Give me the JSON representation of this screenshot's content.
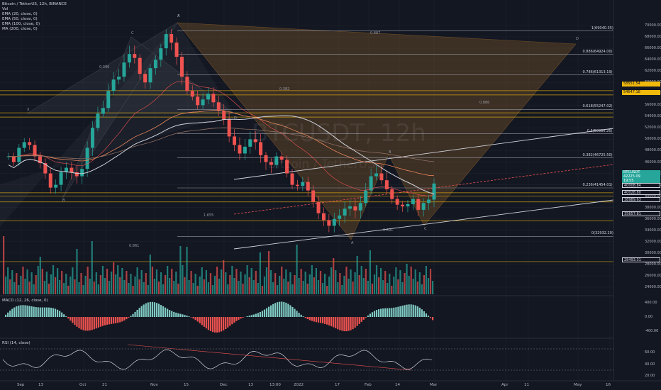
{
  "header": {
    "symbol_line": "Bitcoin / TetherUS, 12h, BINANCE",
    "vol_label": "Vol",
    "indicators": [
      "EMA (20, close, 0)",
      "EMA (50, close, 0)",
      "EMA (100, close, 0)",
      "MA (200, close, 0)"
    ]
  },
  "watermark": {
    "symbol": "BTCUSDT, 12h",
    "name": "Bitcoin / TetherUS"
  },
  "panes": {
    "macd_label": "MACD (12, 26, close, 0)",
    "rsi_label": "RSI (14, close)"
  },
  "x_labels": [
    "Sep",
    "13",
    "Oct",
    "21",
    "Nov",
    "15",
    "Dec",
    "13",
    "13:00",
    "2022",
    "17",
    "Feb",
    "14",
    "Mar",
    "Apr",
    "11",
    "May",
    "16"
  ],
  "price_axis": [
    "70000.00",
    "68000.00",
    "66000.00",
    "64000.00",
    "62000.00",
    "60000.00",
    "58000.00",
    "56000.00",
    "54000.00",
    "52000.00",
    "50000.00",
    "48000.00",
    "46000.00",
    "44000.00",
    "42000.00",
    "40000.00",
    "38000.00",
    "36000.00",
    "34000.00",
    "32000.00",
    "30000.00",
    "28000.00",
    "26000.00",
    "24000.00"
  ],
  "macd_axis": [
    "400.00",
    "0.00",
    "-400.00"
  ],
  "rsi_axis": [
    "60.00",
    "40.00",
    "20.00"
  ],
  "fib_labels": [
    "1(69040.35)",
    "0.886(64924.00)",
    "0.786(61313.19)",
    "0.618(55247.02)",
    "0.5(50986.26)",
    "0.382(46725.50)",
    "0.236(41454.01)",
    "0(32932.20)"
  ],
  "price_boxes": [
    {
      "text": "58551.54",
      "color": "#f0b90b",
      "fg": "#131722"
    },
    {
      "text": "54647.18",
      "color": "#f0b90b",
      "fg": "#131722"
    },
    {
      "text": "BTCUSDT",
      "color": "#26a69a",
      "fg": "#ffffff"
    },
    {
      "text": "42225.09",
      "color": "#26a69a",
      "fg": "#ffffff"
    },
    {
      "text": "19:55",
      "color": "#26a69a",
      "fg": "#ffffff"
    },
    {
      "text": "40008.84",
      "color": "#131722",
      "fg": "#d1d4dc"
    },
    {
      "text": "40028.80",
      "color": "#131722",
      "fg": "#d1d4dc"
    },
    {
      "text": "38989.63",
      "color": "#131722",
      "fg": "#d1d4dc"
    },
    {
      "text": "35657.81",
      "color": "#131722",
      "fg": "#d1d4dc"
    },
    {
      "text": "28493.31",
      "color": "#131722",
      "fg": "#d1d4dc"
    }
  ],
  "pattern_points": [
    "X",
    "A",
    "B",
    "C",
    "D",
    "X",
    "A",
    "B",
    "C",
    "D"
  ],
  "ratio_labels": [
    "0.887",
    "0.382",
    "0.886",
    "1.655",
    "0.891",
    "0.861",
    "0.396"
  ],
  "chart_data": {
    "type": "candlestick",
    "y_range": [
      23000,
      71000
    ],
    "price_series_close": [
      47000,
      46000,
      48500,
      49500,
      49000,
      47000,
      45800,
      44000,
      41500,
      42000,
      44200,
      45000,
      44200,
      43500,
      44800,
      48500,
      52000,
      54500,
      55500,
      58500,
      60500,
      61000,
      63500,
      65000,
      64300,
      61500,
      60000,
      62500,
      64000,
      66000,
      68500,
      67000,
      64500,
      61000,
      58500,
      57500,
      56000,
      57000,
      58000,
      56500,
      55000,
      53500,
      50500,
      49000,
      47500,
      48700,
      50000,
      49500,
      47200,
      46000,
      45500,
      47000,
      46400,
      44000,
      42000,
      41800,
      42500,
      41000,
      39000,
      37000,
      35800,
      34800,
      36000,
      36600,
      37800,
      38200,
      37500,
      38800,
      41000,
      43500,
      44000,
      42800,
      41200,
      39500,
      38500,
      38200,
      38600,
      39500,
      37600,
      38800,
      39400,
      42225
    ],
    "volume_peak_labels": [],
    "macd_zero": 0,
    "rsi_levels": [
      70,
      30
    ]
  }
}
